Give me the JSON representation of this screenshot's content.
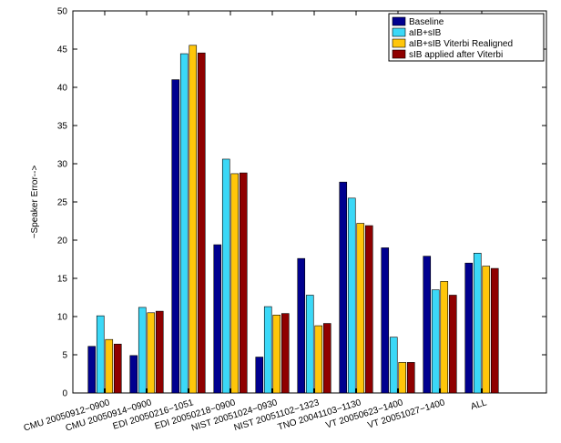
{
  "chart_data": {
    "type": "bar",
    "title": "",
    "xlabel": "",
    "ylabel": "~Speaker Error-->",
    "ylim": [
      0,
      50
    ],
    "yticks": [
      0,
      5,
      10,
      15,
      20,
      25,
      30,
      35,
      40,
      45,
      50
    ],
    "grid": false,
    "legend_position": "top-right",
    "categories": [
      "CMU 20050912−0900",
      "CMU 20050914−0900",
      "EDI 20050216−1051",
      "EDI 20050218−0900",
      "NIST 20051024−0930",
      "NIST 20051102−1323",
      "TNO 20041103−1130",
      "VT 20050623−1400",
      "VT 20051027−1400",
      "ALL"
    ],
    "series": [
      {
        "name": "Baseline",
        "color": "#00008f",
        "values": [
          6.1,
          4.9,
          41.0,
          19.4,
          4.7,
          17.6,
          27.6,
          19.0,
          17.9,
          17.0
        ]
      },
      {
        "name": "aIB+sIB",
        "color": "#3bd8f7",
        "values": [
          10.1,
          11.2,
          44.4,
          30.6,
          11.3,
          12.8,
          25.5,
          7.3,
          13.5,
          18.3
        ]
      },
      {
        "name": "aIB+sIB Viterbi Realigned",
        "color": "#ffc60a",
        "values": [
          7.0,
          10.5,
          45.5,
          28.7,
          10.2,
          8.8,
          22.2,
          4.0,
          14.6,
          16.6
        ]
      },
      {
        "name": "sIB applied after Viterbi",
        "color": "#8f0000",
        "values": [
          6.4,
          10.7,
          44.5,
          28.8,
          10.4,
          9.1,
          21.9,
          4.0,
          12.8,
          16.3
        ]
      }
    ]
  }
}
